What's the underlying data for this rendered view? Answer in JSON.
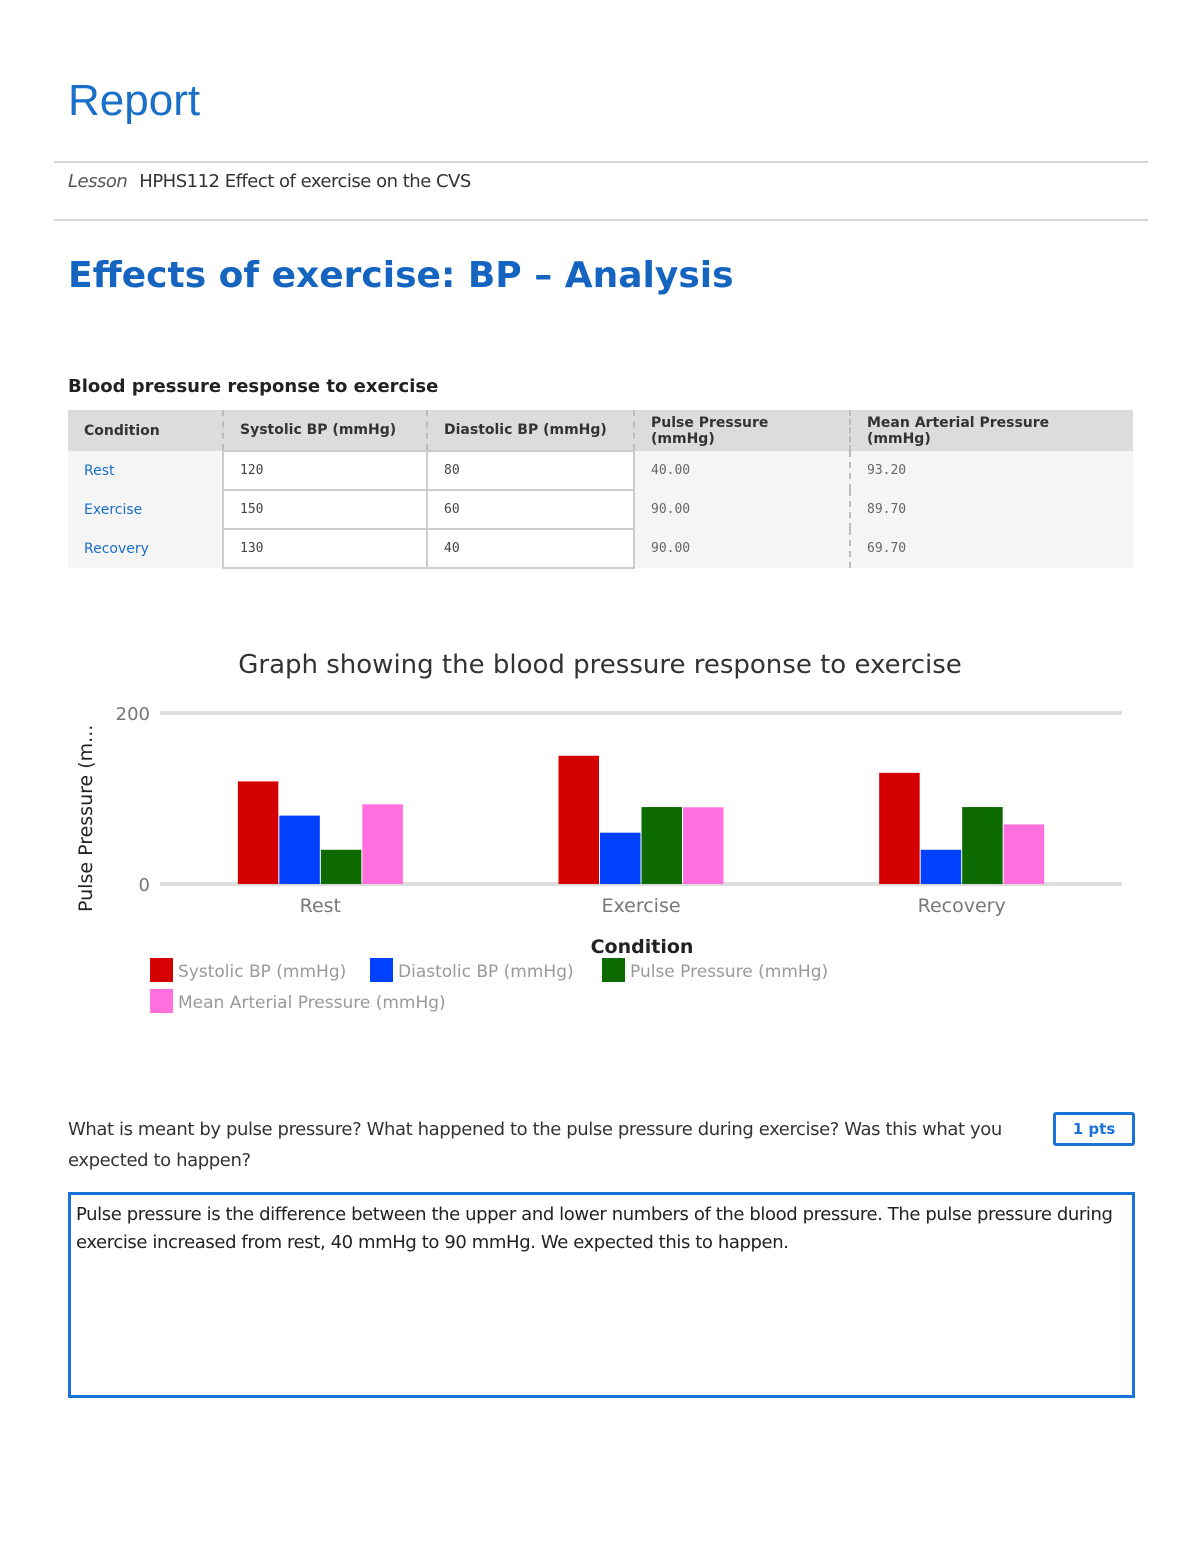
{
  "header": {
    "title": "Report",
    "lesson_label": "Lesson",
    "lesson_name": "HPHS112 Effect of exercise on the CVS"
  },
  "section": {
    "heading": "Effects of exercise: BP – Analysis",
    "table_title": "Blood pressure response to exercise"
  },
  "table": {
    "columns": [
      "Condition",
      "Systolic BP (mmHg)",
      "Diastolic BP (mmHg)",
      "Pulse Pressure (mmHg)",
      "Mean Arterial Pressure (mmHg)"
    ],
    "rows": [
      {
        "condition": "Rest",
        "systolic": "120",
        "diastolic": "80",
        "pulse": "40.00",
        "map": "93.20"
      },
      {
        "condition": "Exercise",
        "systolic": "150",
        "diastolic": "60",
        "pulse": "90.00",
        "map": "89.70"
      },
      {
        "condition": "Recovery",
        "systolic": "130",
        "diastolic": "40",
        "pulse": "90.00",
        "map": "69.70"
      }
    ]
  },
  "chart_data": {
    "type": "bar",
    "title": "Graph showing the blood pressure response to exercise",
    "xlabel": "Condition",
    "ylabel": "Pulse Pressure (m...",
    "categories": [
      "Rest",
      "Exercise",
      "Recovery"
    ],
    "ylim": [
      0,
      200
    ],
    "yticks": [
      "0",
      "200"
    ],
    "grid": true,
    "legend": "bottom",
    "series": [
      {
        "name": "Systolic BP (mmHg)",
        "color": "#d50000",
        "values": [
          120,
          150,
          130
        ]
      },
      {
        "name": "Diastolic BP (mmHg)",
        "color": "#0040ff",
        "values": [
          80,
          60,
          40
        ]
      },
      {
        "name": "Pulse Pressure (mmHg)",
        "color": "#0d6a00",
        "values": [
          40,
          90,
          90
        ]
      },
      {
        "name": "Mean Arterial Pressure (mmHg)",
        "color": "#ff6fde",
        "values": [
          93.2,
          89.7,
          69.7
        ]
      }
    ]
  },
  "question": {
    "text": "What is meant by pulse pressure? What happened to the pulse pressure during exercise? Was this what you expected to happen?",
    "points": "1 pts",
    "answer": "Pulse pressure is the difference between the upper and lower numbers of the blood pressure. The pulse pressure during exercise increased from rest, 40 mmHg to 90 mmHg. We expected this to happen."
  }
}
